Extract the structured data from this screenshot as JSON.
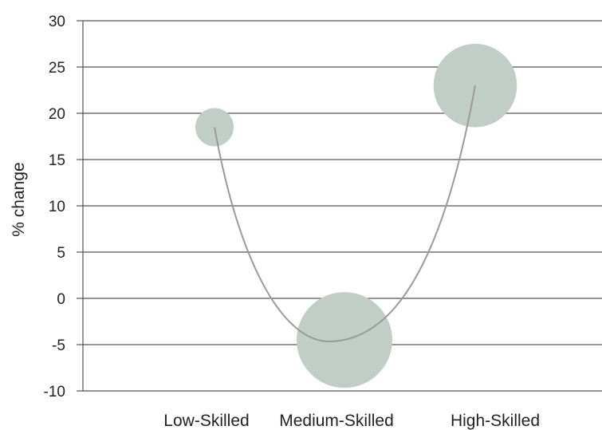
{
  "chart_data": {
    "type": "scatter",
    "ylabel": "% change",
    "ylim": [
      -10,
      30
    ],
    "yticks": [
      30,
      25,
      20,
      15,
      10,
      5,
      0,
      -5,
      -10
    ],
    "categories": [
      "Low-Skilled",
      "Medium-Skilled",
      "High-Skilled"
    ],
    "values": [
      18.5,
      -4.5,
      23
    ],
    "bubble_sizes": [
      4,
      25,
      19
    ],
    "bubble_sizes_note": "relative bubble area (unlabeled)",
    "trend_line": "smooth curve through the three points",
    "grid": true,
    "colors": {
      "bubble": "#c1cec8",
      "line": "#9a9a9a",
      "grid": "#555555"
    }
  }
}
